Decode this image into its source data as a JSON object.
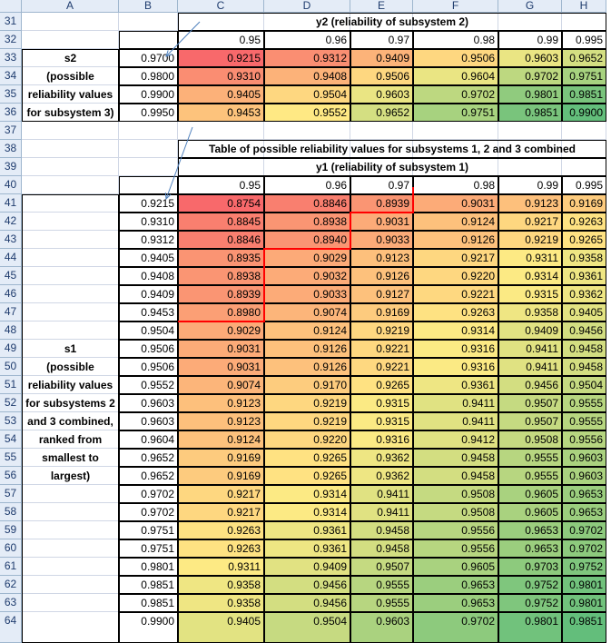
{
  "columns": [
    "A",
    "B",
    "C",
    "D",
    "E",
    "F",
    "G",
    "H"
  ],
  "rows": [
    31,
    32,
    33,
    34,
    35,
    36,
    37,
    38,
    39,
    40,
    41,
    42,
    43,
    44,
    45,
    46,
    47,
    48,
    49,
    50,
    51,
    52,
    53,
    54,
    55,
    56,
    57,
    58,
    59,
    60,
    61,
    62,
    63,
    64
  ],
  "y2_title": "y2 (reliability of subsystem 2)",
  "y2_headers": [
    "0.95",
    "0.96",
    "0.97",
    "0.98",
    "0.99",
    "0.995"
  ],
  "s2_label": [
    "s2",
    "(possible",
    "reliability values",
    "for subsystem 3)"
  ],
  "s2_values": [
    "0.9700",
    "0.9800",
    "0.9900",
    "0.9950"
  ],
  "table1": [
    [
      "0.9215",
      "0.9312",
      "0.9409",
      "0.9506",
      "0.9603",
      "0.9652"
    ],
    [
      "0.9310",
      "0.9408",
      "0.9506",
      "0.9604",
      "0.9702",
      "0.9751"
    ],
    [
      "0.9405",
      "0.9504",
      "0.9603",
      "0.9702",
      "0.9801",
      "0.9851"
    ],
    [
      "0.9453",
      "0.9552",
      "0.9652",
      "0.9751",
      "0.9851",
      "0.9900"
    ]
  ],
  "table2_title": "Table of possible reliability values for subsystems 1, 2 and 3 combined",
  "y1_title": "y1 (reliability of subsystem 1)",
  "y1_headers": [
    "0.95",
    "0.96",
    "0.97",
    "0.98",
    "0.99",
    "0.995"
  ],
  "s1_label": [
    "s1",
    "(possible",
    "reliability values",
    "for subsystems 2",
    "and 3 combined,",
    "ranked from",
    "smallest to",
    "largest)"
  ],
  "s1_values": [
    "0.9215",
    "0.9310",
    "0.9312",
    "0.9405",
    "0.9408",
    "0.9409",
    "0.9453",
    "0.9504",
    "0.9506",
    "0.9506",
    "0.9552",
    "0.9603",
    "0.9603",
    "0.9604",
    "0.9652",
    "0.9652",
    "0.9702",
    "0.9702",
    "0.9751",
    "0.9751",
    "0.9801",
    "0.9851",
    "0.9851",
    "0.9900"
  ],
  "table2": [
    [
      "0.8754",
      "0.8846",
      "0.8939",
      "0.9031",
      "0.9123",
      "0.9169"
    ],
    [
      "0.8845",
      "0.8938",
      "0.9031",
      "0.9124",
      "0.9217",
      "0.9263"
    ],
    [
      "0.8846",
      "0.8940",
      "0.9033",
      "0.9126",
      "0.9219",
      "0.9265"
    ],
    [
      "0.8935",
      "0.9029",
      "0.9123",
      "0.9217",
      "0.9311",
      "0.9358"
    ],
    [
      "0.8938",
      "0.9032",
      "0.9126",
      "0.9220",
      "0.9314",
      "0.9361"
    ],
    [
      "0.8939",
      "0.9033",
      "0.9127",
      "0.9221",
      "0.9315",
      "0.9362"
    ],
    [
      "0.8980",
      "0.9074",
      "0.9169",
      "0.9263",
      "0.9358",
      "0.9405"
    ],
    [
      "0.9029",
      "0.9124",
      "0.9219",
      "0.9314",
      "0.9409",
      "0.9456"
    ],
    [
      "0.9031",
      "0.9126",
      "0.9221",
      "0.9316",
      "0.9411",
      "0.9458"
    ],
    [
      "0.9031",
      "0.9126",
      "0.9221",
      "0.9316",
      "0.9411",
      "0.9458"
    ],
    [
      "0.9074",
      "0.9170",
      "0.9265",
      "0.9361",
      "0.9456",
      "0.9504"
    ],
    [
      "0.9123",
      "0.9219",
      "0.9315",
      "0.9411",
      "0.9507",
      "0.9555"
    ],
    [
      "0.9123",
      "0.9219",
      "0.9315",
      "0.9411",
      "0.9507",
      "0.9555"
    ],
    [
      "0.9124",
      "0.9220",
      "0.9316",
      "0.9412",
      "0.9508",
      "0.9556"
    ],
    [
      "0.9169",
      "0.9265",
      "0.9362",
      "0.9458",
      "0.9555",
      "0.9603"
    ],
    [
      "0.9169",
      "0.9265",
      "0.9362",
      "0.9458",
      "0.9555",
      "0.9603"
    ],
    [
      "0.9217",
      "0.9314",
      "0.9411",
      "0.9508",
      "0.9605",
      "0.9653"
    ],
    [
      "0.9217",
      "0.9314",
      "0.9411",
      "0.9508",
      "0.9605",
      "0.9653"
    ],
    [
      "0.9263",
      "0.9361",
      "0.9458",
      "0.9556",
      "0.9653",
      "0.9702"
    ],
    [
      "0.9263",
      "0.9361",
      "0.9458",
      "0.9556",
      "0.9653",
      "0.9702"
    ],
    [
      "0.9311",
      "0.9409",
      "0.9507",
      "0.9605",
      "0.9703",
      "0.9752"
    ],
    [
      "0.9358",
      "0.9456",
      "0.9555",
      "0.9653",
      "0.9752",
      "0.9801"
    ],
    [
      "0.9358",
      "0.9456",
      "0.9555",
      "0.9653",
      "0.9752",
      "0.9801"
    ],
    [
      "0.9405",
      "0.9504",
      "0.9603",
      "0.9702",
      "0.9801",
      "0.9851"
    ]
  ],
  "colors": {
    "heat_low": "#f8696b",
    "heat_mid": "#ffeb84",
    "heat_high": "#63be7b",
    "header_bg": "#e4ecf7",
    "header_text": "#1f3c6e",
    "boundary": "#ff0000",
    "arrow": "#4f81bd"
  }
}
